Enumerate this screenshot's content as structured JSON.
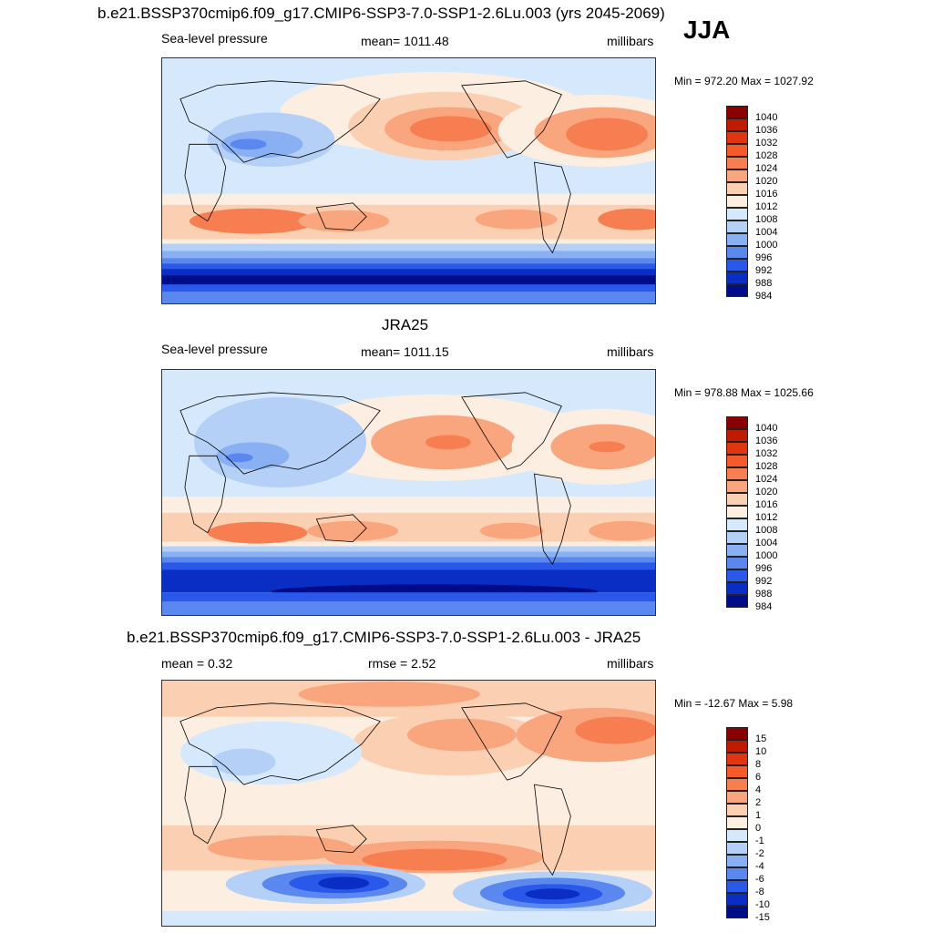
{
  "season": "JJA",
  "panels": [
    {
      "id": "model",
      "title": "b.e21.BSSP370cmip6.f09_g17.CMIP6-SSP3-7.0-SSP1-2.6Lu.003 (yrs 2045-2069)",
      "left_label": "Sea-level pressure",
      "center_label": "mean= 1011.48",
      "right_label": "millibars",
      "minmax": "Min = 972.20 Max = 1027.92",
      "levels": [
        "1040",
        "1036",
        "1032",
        "1028",
        "1024",
        "1020",
        "1016",
        "1012",
        "1008",
        "1004",
        "1000",
        "996",
        "992",
        "988",
        "984"
      ]
    },
    {
      "id": "obs",
      "title": "JRA25",
      "left_label": "Sea-level pressure",
      "center_label": "mean= 1011.15",
      "right_label": "millibars",
      "minmax": "Min = 978.88 Max = 1025.66",
      "levels": [
        "1040",
        "1036",
        "1032",
        "1028",
        "1024",
        "1020",
        "1016",
        "1012",
        "1008",
        "1004",
        "1000",
        "996",
        "992",
        "988",
        "984"
      ]
    },
    {
      "id": "diff",
      "title": "b.e21.BSSP370cmip6.f09_g17.CMIP6-SSP3-7.0-SSP1-2.6Lu.003 - JRA25",
      "left_label": "mean =   0.32",
      "center_label": "rmse =   2.52",
      "right_label": "millibars",
      "minmax": "Min = -12.67 Max =   5.98",
      "levels": [
        "15",
        "10",
        "8",
        "6",
        "4",
        "2",
        "1",
        "0",
        "-1",
        "-2",
        "-4",
        "-6",
        "-8",
        "-10",
        "-15"
      ]
    }
  ],
  "colors": [
    "#8b0000",
    "#c01a00",
    "#e03510",
    "#f55a2a",
    "#f77e50",
    "#f9a57e",
    "#fbcfb2",
    "#fdeee2",
    "#d6e8fb",
    "#b5d0f7",
    "#88b0f3",
    "#5a88ef",
    "#2a58e8",
    "#0a2ec4",
    "#000c88"
  ]
}
